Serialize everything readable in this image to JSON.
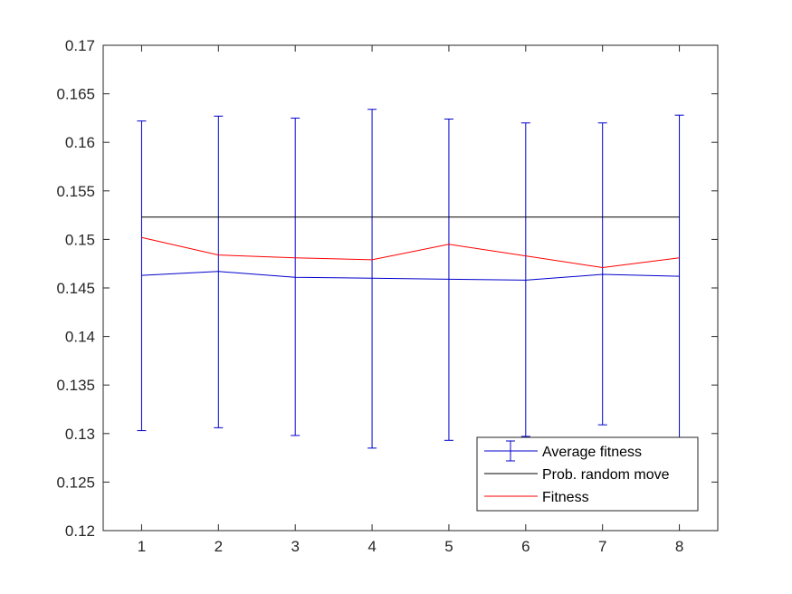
{
  "chart_data": {
    "type": "line",
    "title": "",
    "xlabel": "",
    "ylabel": "",
    "x": [
      1,
      2,
      3,
      4,
      5,
      6,
      7,
      8
    ],
    "xlim": [
      0.5,
      8.5
    ],
    "ylim": [
      0.12,
      0.17
    ],
    "xticks": [
      1,
      2,
      3,
      4,
      5,
      6,
      7,
      8
    ],
    "xtick_labels": [
      "1",
      "2",
      "3",
      "4",
      "5",
      "6",
      "7",
      "8"
    ],
    "yticks": [
      0.12,
      0.125,
      0.13,
      0.135,
      0.14,
      0.145,
      0.15,
      0.155,
      0.16,
      0.165,
      0.17
    ],
    "ytick_labels": [
      "0.12",
      "0.125",
      "0.13",
      "0.135",
      "0.14",
      "0.145",
      "0.15",
      "0.155",
      "0.16",
      "0.165",
      "0.17"
    ],
    "grid": false,
    "legend_position": "bottom-right",
    "series": [
      {
        "name": "Average fitness",
        "kind": "errorbar",
        "color": "#0000cc",
        "values": [
          0.1463,
          0.1467,
          0.1461,
          0.146,
          0.1459,
          0.1458,
          0.1464,
          0.1462
        ],
        "lower": [
          0.1303,
          0.1306,
          0.1298,
          0.1285,
          0.1293,
          0.1297,
          0.1309,
          0.1296
        ],
        "upper": [
          0.1622,
          0.1627,
          0.1625,
          0.1634,
          0.1624,
          0.162,
          0.162,
          0.1628
        ]
      },
      {
        "name": "Prob. random move",
        "kind": "line",
        "color": "#000000",
        "values": [
          0.1523,
          0.1523,
          0.1523,
          0.1523,
          0.1523,
          0.1523,
          0.1523,
          0.1523
        ]
      },
      {
        "name": "Fitness",
        "kind": "line",
        "color": "#ff0000",
        "values": [
          0.1502,
          0.1484,
          0.1481,
          0.1479,
          0.1495,
          0.1483,
          0.1471,
          0.1481
        ]
      }
    ]
  }
}
